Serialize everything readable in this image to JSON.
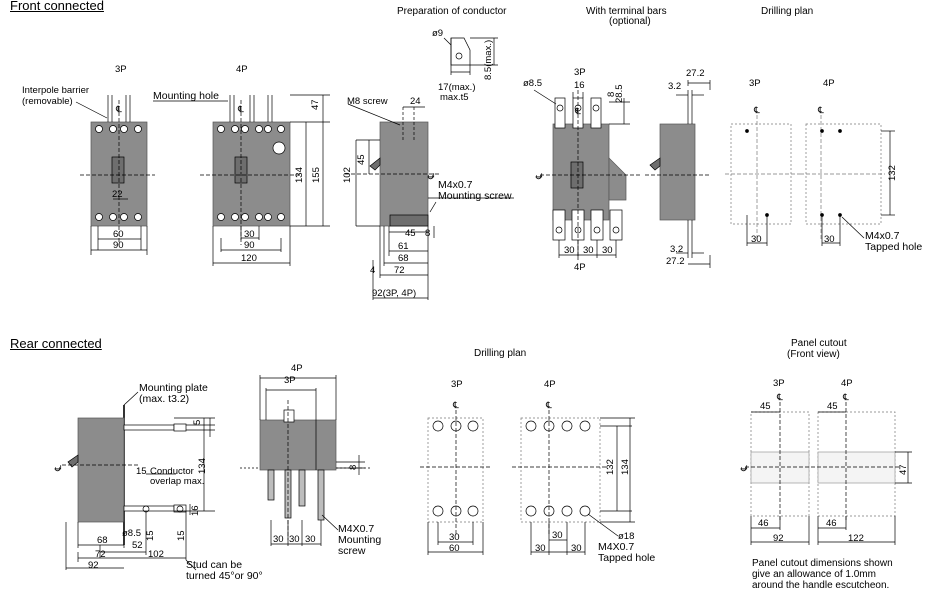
{
  "sections": {
    "front": "Front connected",
    "rear": "Rear connected"
  },
  "front_labels": {
    "p3": "3P",
    "p4": "4P",
    "interpole_1": "Interpole barrier",
    "interpole_2": "(removable)",
    "mounting_hole": "Mounting hole",
    "d60": "60",
    "d90a": "90",
    "d22": "22",
    "d30": "30",
    "d90b": "90",
    "d120": "120",
    "d47": "47",
    "d134": "134",
    "d155": "155"
  },
  "conductor": {
    "title": "Preparation of conductor",
    "d9": "ø9",
    "d85": "8.5(max.)",
    "d17_1": "17(max.)",
    "d17_2": "max.t5"
  },
  "side_front": {
    "m8": "M8 screw",
    "d24": "24",
    "d102": "102",
    "d45v": "45",
    "m4_1": "M4x0.7",
    "m4_2": "Mounting screw",
    "d45": "45",
    "d8": "8",
    "d61": "61",
    "d68": "68",
    "d4": "4",
    "d72": "72",
    "d92": "92(3P, 4P)"
  },
  "terminal_bars": {
    "title_1": "With terminal bars",
    "title_2": "(optional)",
    "p3": "3P",
    "p4": "4P",
    "d85": "ø8.5",
    "d16": "16",
    "d8": "8",
    "d285": "28.5",
    "d30a": "30",
    "d30b": "30",
    "d30c": "30",
    "d272a": "27.2",
    "d32a": "3.2",
    "d32b": "3.2",
    "d272b": "27.2"
  },
  "drill_front": {
    "title": "Drilling plan",
    "p3": "3P",
    "p4": "4P",
    "d30a": "30",
    "d30b": "30",
    "d132": "132",
    "m4_1": "M4x0.7",
    "m4_2": "Tapped hole"
  },
  "rear": {
    "plate_1": "Mounting plate",
    "plate_2": "(max. t3.2)",
    "d5": "5",
    "d134": "134",
    "cond_1": "Conductor",
    "cond_2": "overlap max.",
    "d15a": "15",
    "d85": "ø8.5",
    "d15b": "15",
    "d15c": "15",
    "d16": "16",
    "d68": "68",
    "d52": "52",
    "d72": "72",
    "d102": "102",
    "d92": "92",
    "stud_1": "Stud can be",
    "stud_2": "turned 45°or 90°"
  },
  "rear_side": {
    "p4": "4P",
    "p3": "3P",
    "d8": "8",
    "d30a": "30",
    "d30b": "30",
    "d30c": "30",
    "m4_1": "M4X0.7",
    "m4_2": "Mounting",
    "m4_3": "screw"
  },
  "drill_rear": {
    "title": "Drilling plan",
    "p3": "3P",
    "p4": "4P",
    "d30": "30",
    "d60": "60",
    "d132": "132",
    "d134": "134",
    "d18": "ø18",
    "d30a": "30",
    "d30b": "30",
    "d30c": "30",
    "m4_1": "M4X0.7",
    "m4_2": "Tapped hole"
  },
  "panel": {
    "title_1": "Panel cutout",
    "title_2": "(Front view)",
    "p3": "3P",
    "p4": "4P",
    "d45a": "45",
    "d45b": "45",
    "d47": "47",
    "d46a": "46",
    "d46b": "46",
    "d92": "92",
    "d122": "122",
    "note_1": "Panel cutout dimensions shown",
    "note_2": "give an allowance of 1.0mm",
    "note_3": "around the handle escutcheon."
  },
  "colors": {
    "body": "#8c8c8c",
    "body_dark": "#6e6e6e",
    "line": "#000000",
    "cutout": "#bdbdbd"
  }
}
